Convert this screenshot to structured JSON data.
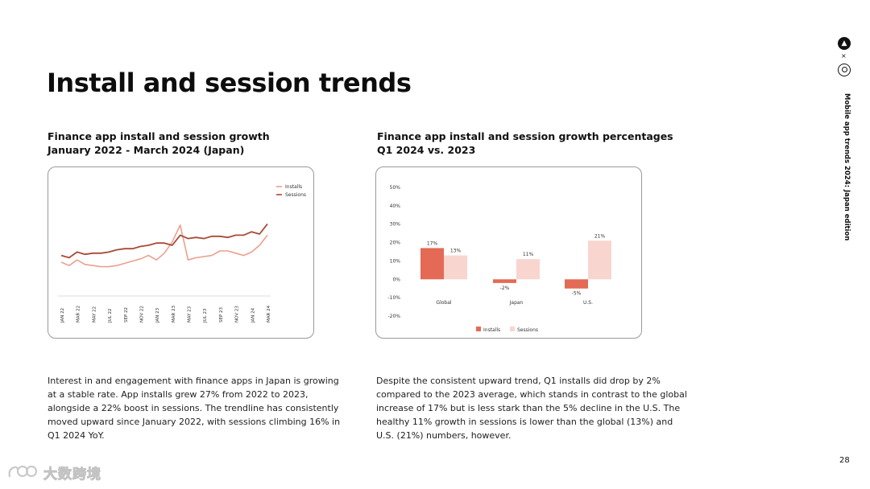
{
  "page": {
    "title": "Install and session trends",
    "side_title": "Mobile app trends 2024: Japan edition",
    "page_number": "28",
    "logo_x": "×",
    "watermark_text": "大数跨境"
  },
  "left": {
    "heading_line1": "Finance app install and session growth",
    "heading_line2": "January 2022 - March 2024 (Japan)",
    "body": "Interest in and engagement with finance apps in Japan is growing at a stable rate. App installs grew 27% from 2022 to 2023, alongside a 22% boost in sessions. The trendline has consistently moved upward since January 2022, with sessions climbing 16% in Q1 2024 YoY."
  },
  "right": {
    "heading_line1": "Finance app install and session growth percentages",
    "heading_line2": "Q1 2024 vs. 2023",
    "body": "Despite the consistent upward trend, Q1 installs did drop by 2% compared to the 2023 average, which stands in contrast to the global increase of 17% but is less stark than the 5% decline in the U.S. The healthy 11% growth in sessions is lower than the global (13%) and U.S. (21%) numbers, however."
  },
  "chart_data": [
    {
      "type": "line",
      "title": "Finance app install and session growth January 2022 - March 2024 (Japan)",
      "x": [
        "JAN 22",
        "FEB 22",
        "MAR 22",
        "APR 22",
        "MAY 22",
        "JUN 22",
        "JUL 22",
        "AUG 22",
        "SEP 22",
        "OCT 22",
        "NOV 22",
        "DEC 22",
        "JAN 23",
        "FEB 23",
        "MAR 23",
        "APR 23",
        "MAY 23",
        "JUN 23",
        "JUL 23",
        "AUG 23",
        "SEP 23",
        "OCT 23",
        "NOV 23",
        "DEC 23",
        "JAN 24",
        "FEB 24",
        "MAR 24"
      ],
      "tick_labels": [
        "JAN 22",
        "MAR 22",
        "MAY 22",
        "JUL 22",
        "SEP 22",
        "NOV 22",
        "JAN 23",
        "MAR 23",
        "MAY 23",
        "JUL 23",
        "SEP 23",
        "NOV 23",
        "JAN 24",
        "MAR 24"
      ],
      "series": [
        {
          "name": "Installs",
          "color": "#EBA08F",
          "values": [
            30,
            27,
            32,
            28,
            27,
            26,
            26,
            27,
            29,
            31,
            33,
            36,
            32,
            38,
            48,
            63,
            32,
            34,
            35,
            36,
            40,
            40,
            38,
            36,
            39,
            45,
            54
          ]
        },
        {
          "name": "Sessions",
          "color": "#A94A36",
          "values": [
            36,
            34,
            39,
            37,
            38,
            38,
            39,
            41,
            42,
            42,
            44,
            45,
            47,
            47,
            45,
            54,
            51,
            52,
            51,
            53,
            53,
            52,
            54,
            54,
            57,
            55,
            64
          ]
        }
      ],
      "ylim": [
        0,
        100
      ],
      "legend_position": "top-right",
      "xlabel": "",
      "ylabel": ""
    },
    {
      "type": "bar",
      "title": "Finance app install and session growth percentages Q1 2024 vs. 2023",
      "categories": [
        "Global",
        "Japan",
        "U.S."
      ],
      "series": [
        {
          "name": "Installs",
          "color": "#E46A55",
          "values": [
            17,
            -2,
            -5
          ],
          "labels": [
            "17%",
            "-2%",
            "-5%"
          ]
        },
        {
          "name": "Sessions",
          "color": "#F8D5CF",
          "values": [
            13,
            11,
            21
          ],
          "labels": [
            "13%",
            "11%",
            "21%"
          ]
        }
      ],
      "ylim": [
        -20,
        50
      ],
      "yticks": [
        50,
        40,
        30,
        20,
        10,
        0,
        -10,
        -20
      ],
      "ytick_labels": [
        "50%",
        "40%",
        "30%",
        "20%",
        "10%",
        "0%",
        "-10%",
        "-20%"
      ],
      "legend_position": "bottom-center",
      "xlabel": "",
      "ylabel": ""
    }
  ]
}
